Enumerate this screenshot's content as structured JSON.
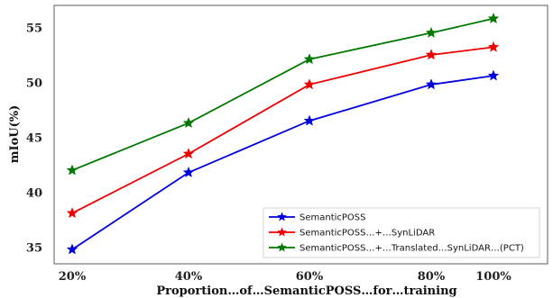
{
  "chart_data": {
    "type": "line",
    "categories": [
      "20%",
      "40%",
      "60%",
      "80%",
      "100%"
    ],
    "xlabel": "Proportion…of…SemanticPOSS…for…training",
    "ylabel": "mIoU(%)",
    "ylim": [
      33.5,
      57
    ],
    "yticks": [
      35,
      40,
      45,
      50,
      55
    ],
    "grid": false,
    "legend_position": "bottom-right",
    "marker": "star",
    "series": [
      {
        "name": "SemanticPOSS",
        "color": "#0000dd",
        "values": [
          34.8,
          41.8,
          46.5,
          49.8,
          50.6
        ]
      },
      {
        "name": "SemanticPOSS…+…SynLiDAR",
        "color": "#ee0000",
        "values": [
          38.1,
          43.5,
          49.8,
          52.5,
          53.2
        ]
      },
      {
        "name": "SemanticPOSS…+…Translated…SynLiDAR…(PCT)",
        "color": "#007700",
        "values": [
          42.0,
          46.3,
          52.1,
          54.5,
          55.8
        ]
      }
    ]
  }
}
